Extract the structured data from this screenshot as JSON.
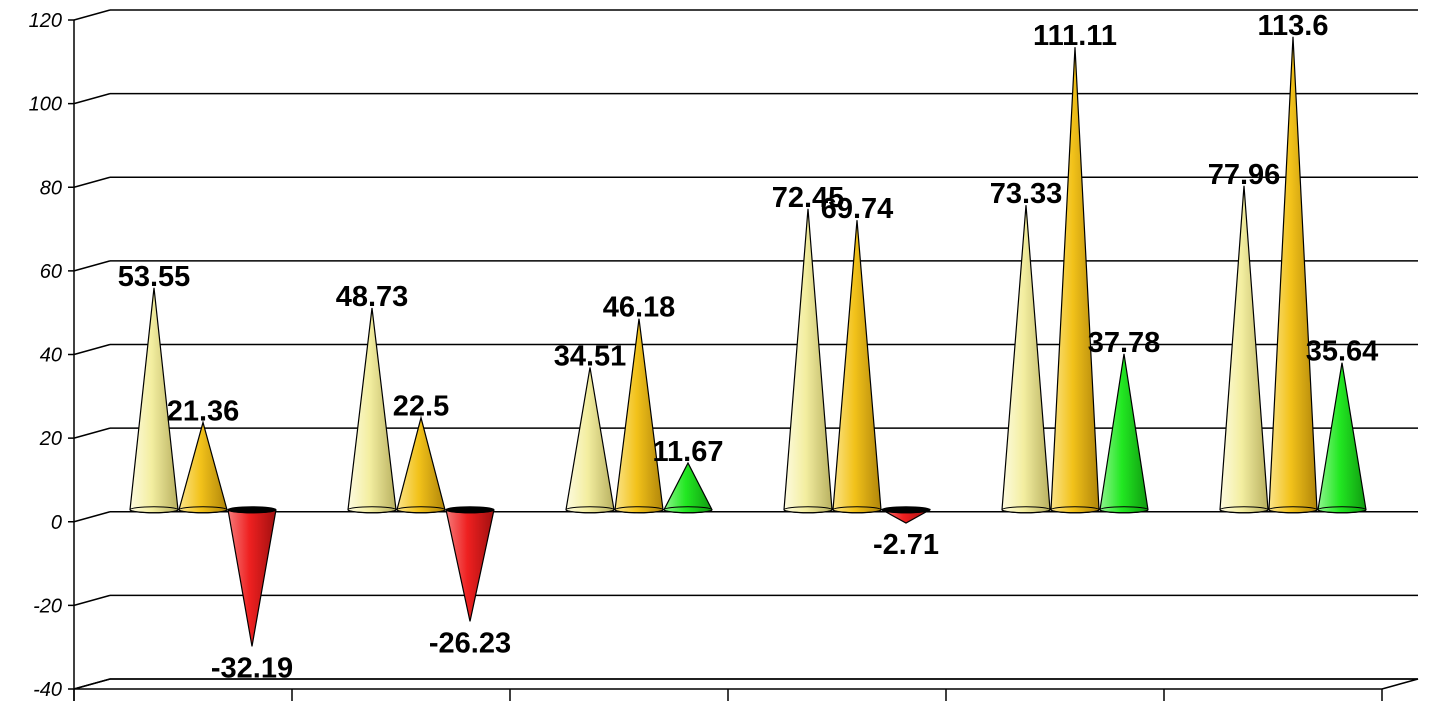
{
  "chart_data": {
    "type": "bar",
    "title": "",
    "xlabel": "",
    "ylabel": "",
    "ylim": [
      -40,
      120
    ],
    "yticks": [
      120,
      100,
      80,
      60,
      40,
      20,
      0,
      -20,
      -40
    ],
    "ytick_labels": [
      "120",
      "100",
      "80",
      "60",
      "40",
      "20",
      "0",
      "-20",
      "-40"
    ],
    "grid": true,
    "legend": "none",
    "categories": [
      "",
      "",
      "",
      "",
      "",
      ""
    ],
    "series": [
      {
        "color": "#f3eea0",
        "values": [
          53.55,
          48.73,
          34.51,
          72.45,
          73.33,
          77.96
        ],
        "labels": [
          "53.55",
          "48.73",
          "34.51",
          "72.45",
          "73.33",
          "77.96"
        ]
      },
      {
        "color": "#f2c21a",
        "values": [
          21.36,
          22.5,
          46.18,
          69.74,
          111.11,
          113.6
        ],
        "labels": [
          "21.36",
          "22.5",
          "46.18",
          "69.74",
          "111.11",
          "113.6"
        ]
      },
      {
        "color_positive": "#22e822",
        "color_negative": "#ee2020",
        "values": [
          -32.19,
          -26.23,
          11.67,
          -2.71,
          37.78,
          35.64
        ],
        "labels": [
          "-32.19",
          "-26.23",
          "11.67",
          "-2.71",
          "37.78",
          "35.64"
        ]
      }
    ]
  }
}
